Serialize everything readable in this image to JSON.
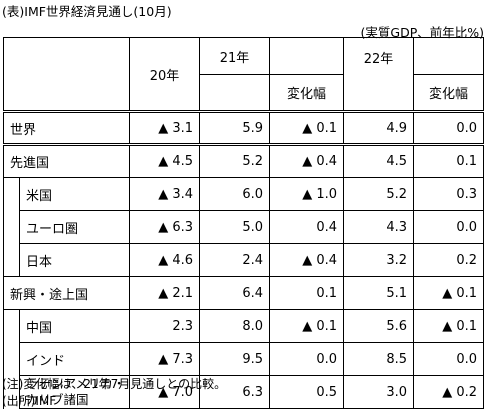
{
  "title": "(表)IMF世界経済見通し(10月)",
  "unit": "(実質GDP、前年比%)",
  "headers": {
    "y2020": "20年",
    "y2021": "21年",
    "change": "変化幅",
    "y2022": "22年"
  },
  "rows": [
    {
      "label": "世界",
      "indent": false,
      "v20": "▲ 3.1",
      "v21": "5.9",
      "c21": "▲ 0.1",
      "v22": "4.9",
      "c22": "0.0"
    },
    {
      "label": "先進国",
      "indent": false,
      "v20": "▲ 4.5",
      "v21": "5.2",
      "c21": "▲ 0.4",
      "v22": "4.5",
      "c22": "0.1"
    },
    {
      "label": "米国",
      "indent": true,
      "v20": "▲ 3.4",
      "v21": "6.0",
      "c21": "▲ 1.0",
      "v22": "5.2",
      "c22": "0.3"
    },
    {
      "label": "ユーロ圏",
      "indent": true,
      "v20": "▲ 6.3",
      "v21": "5.0",
      "c21": "0.4",
      "v22": "4.3",
      "c22": "0.0"
    },
    {
      "label": "日本",
      "indent": true,
      "v20": "▲ 4.6",
      "v21": "2.4",
      "c21": "▲ 0.4",
      "v22": "3.2",
      "c22": "0.2"
    },
    {
      "label": "新興・途上国",
      "indent": false,
      "v20": "▲ 2.1",
      "v21": "6.4",
      "c21": "0.1",
      "v22": "5.1",
      "c22": "▲ 0.1"
    },
    {
      "label": "中国",
      "indent": true,
      "v20": "2.3",
      "v21": "8.0",
      "c21": "▲ 0.1",
      "v22": "5.6",
      "c22": "▲ 0.1"
    },
    {
      "label": "インド",
      "indent": true,
      "v20": "▲ 7.3",
      "v21": "9.5",
      "c21": "0.0",
      "v22": "8.5",
      "c22": "0.0"
    },
    {
      "label": "ラテンアメリカ・\nカリブ諸国",
      "indent": true,
      "v20": "▲ 7.0",
      "v21": "6.3",
      "c21": "0.5",
      "v22": "3.0",
      "c22": "▲ 0.2"
    }
  ],
  "notes": [
    "(注)変化幅は、21年7月見通しとの比較。",
    "(出所)IMF"
  ]
}
